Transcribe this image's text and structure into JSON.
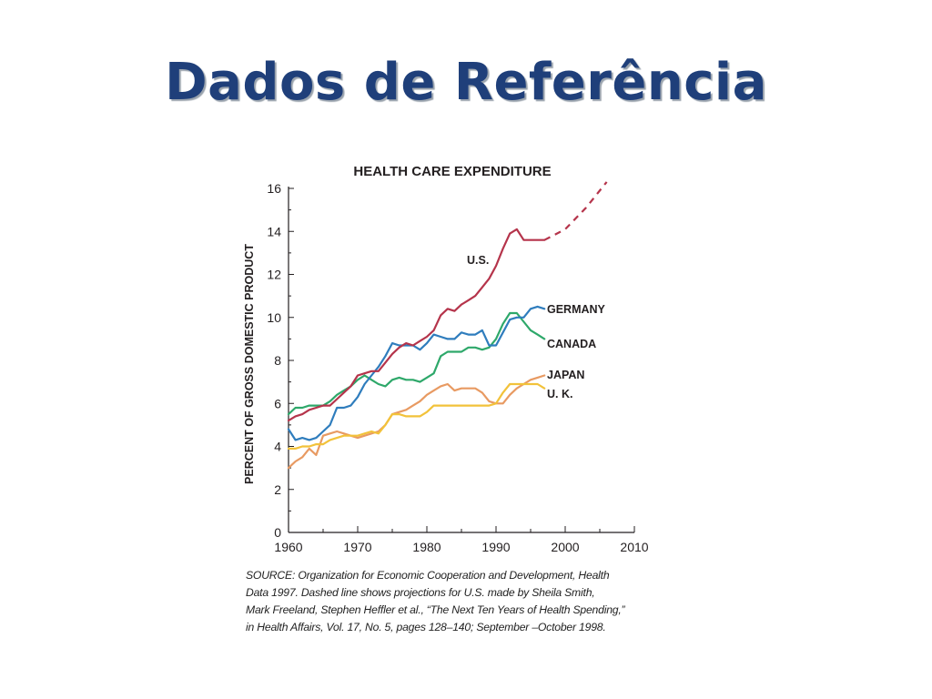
{
  "slide": {
    "title": "Dados de Referência"
  },
  "chart_data": {
    "type": "line",
    "title": "HEALTH CARE EXPENDITURE",
    "ylabel": "PERCENT OF GROSS DOMESTIC PRODUCT",
    "xlabel": "",
    "xlim": [
      1960,
      2010
    ],
    "ylim": [
      0,
      16
    ],
    "xticks": [
      "1960",
      "1970",
      "1980",
      "1990",
      "2000",
      "2010"
    ],
    "yticks": [
      "0",
      "2",
      "4",
      "6",
      "8",
      "10",
      "12",
      "14",
      "16"
    ],
    "series": [
      {
        "name": "U.S.",
        "color": "#b5344b",
        "x": [
          1960,
          1961,
          1962,
          1963,
          1964,
          1965,
          1966,
          1967,
          1968,
          1969,
          1970,
          1971,
          1972,
          1973,
          1974,
          1975,
          1976,
          1977,
          1978,
          1979,
          1980,
          1981,
          1982,
          1983,
          1984,
          1985,
          1986,
          1987,
          1988,
          1989,
          1990,
          1991,
          1992,
          1993,
          1994,
          1995,
          1996,
          1997
        ],
        "values": [
          5.2,
          5.4,
          5.5,
          5.7,
          5.8,
          5.9,
          5.9,
          6.2,
          6.5,
          6.8,
          7.3,
          7.4,
          7.5,
          7.5,
          7.9,
          8.3,
          8.6,
          8.8,
          8.7,
          8.9,
          9.1,
          9.4,
          10.1,
          10.4,
          10.3,
          10.6,
          10.8,
          11.0,
          11.4,
          11.8,
          12.4,
          13.2,
          13.9,
          14.1,
          13.6,
          13.6,
          13.6,
          13.6
        ]
      },
      {
        "name": "U.S. projection",
        "color": "#b5344b",
        "dashed": true,
        "x": [
          1997,
          2000,
          2003,
          2006
        ],
        "values": [
          13.6,
          14.1,
          15.1,
          16.3
        ]
      },
      {
        "name": "GERMANY",
        "color": "#2f7dbd",
        "x": [
          1960,
          1961,
          1962,
          1963,
          1964,
          1965,
          1966,
          1967,
          1968,
          1969,
          1970,
          1971,
          1972,
          1973,
          1974,
          1975,
          1976,
          1977,
          1978,
          1979,
          1980,
          1981,
          1982,
          1983,
          1984,
          1985,
          1986,
          1987,
          1988,
          1989,
          1990,
          1991,
          1992,
          1993,
          1994,
          1995,
          1996,
          1997
        ],
        "values": [
          4.8,
          4.3,
          4.4,
          4.3,
          4.4,
          4.7,
          5.0,
          5.8,
          5.8,
          5.9,
          6.3,
          6.9,
          7.3,
          7.7,
          8.2,
          8.8,
          8.7,
          8.7,
          8.7,
          8.5,
          8.8,
          9.2,
          9.1,
          9.0,
          9.0,
          9.3,
          9.2,
          9.2,
          9.4,
          8.7,
          8.7,
          9.3,
          9.9,
          10.0,
          10.0,
          10.4,
          10.5,
          10.4
        ]
      },
      {
        "name": "CANADA",
        "color": "#2ea86a",
        "x": [
          1960,
          1961,
          1962,
          1963,
          1964,
          1965,
          1966,
          1967,
          1968,
          1969,
          1970,
          1971,
          1972,
          1973,
          1974,
          1975,
          1976,
          1977,
          1978,
          1979,
          1980,
          1981,
          1982,
          1983,
          1984,
          1985,
          1986,
          1987,
          1988,
          1989,
          1990,
          1991,
          1992,
          1993,
          1994,
          1995,
          1996,
          1997
        ],
        "values": [
          5.5,
          5.8,
          5.8,
          5.9,
          5.9,
          5.9,
          6.1,
          6.4,
          6.6,
          6.8,
          7.1,
          7.3,
          7.1,
          6.9,
          6.8,
          7.1,
          7.2,
          7.1,
          7.1,
          7.0,
          7.2,
          7.4,
          8.2,
          8.4,
          8.4,
          8.4,
          8.6,
          8.6,
          8.5,
          8.6,
          9.0,
          9.7,
          10.2,
          10.2,
          9.8,
          9.4,
          9.2,
          9.0
        ]
      },
      {
        "name": "JAPAN",
        "color": "#e89a62",
        "x": [
          1960,
          1961,
          1962,
          1963,
          1964,
          1965,
          1966,
          1967,
          1968,
          1969,
          1970,
          1971,
          1972,
          1973,
          1974,
          1975,
          1976,
          1977,
          1978,
          1979,
          1980,
          1981,
          1982,
          1983,
          1984,
          1985,
          1986,
          1987,
          1988,
          1989,
          1990,
          1991,
          1992,
          1993,
          1994,
          1995,
          1996,
          1997
        ],
        "values": [
          3.0,
          3.3,
          3.5,
          3.9,
          3.6,
          4.5,
          4.6,
          4.7,
          4.6,
          4.5,
          4.4,
          4.5,
          4.6,
          4.7,
          5.0,
          5.5,
          5.6,
          5.7,
          5.9,
          6.1,
          6.4,
          6.6,
          6.8,
          6.9,
          6.6,
          6.7,
          6.7,
          6.7,
          6.5,
          6.1,
          6.0,
          6.0,
          6.4,
          6.7,
          6.9,
          7.1,
          7.2,
          7.3
        ]
      },
      {
        "name": "U. K.",
        "color": "#f2c23a",
        "x": [
          1960,
          1961,
          1962,
          1963,
          1964,
          1965,
          1966,
          1967,
          1968,
          1969,
          1970,
          1971,
          1972,
          1973,
          1974,
          1975,
          1976,
          1977,
          1978,
          1979,
          1980,
          1981,
          1982,
          1983,
          1984,
          1985,
          1986,
          1987,
          1988,
          1989,
          1990,
          1991,
          1992,
          1993,
          1994,
          1995,
          1996,
          1997
        ],
        "values": [
          3.9,
          3.9,
          4.0,
          4.0,
          4.1,
          4.1,
          4.3,
          4.4,
          4.5,
          4.5,
          4.5,
          4.6,
          4.7,
          4.6,
          5.0,
          5.5,
          5.5,
          5.4,
          5.4,
          5.4,
          5.6,
          5.9,
          5.9,
          5.9,
          5.9,
          5.9,
          5.9,
          5.9,
          5.9,
          5.9,
          6.0,
          6.5,
          6.9,
          6.9,
          6.9,
          6.9,
          6.9,
          6.7
        ]
      }
    ],
    "annotations": {
      "us_label": "U.S.",
      "germany_label": "GERMANY",
      "canada_label": "CANADA",
      "japan_label": "JAPAN",
      "uk_label": "U. K."
    },
    "grid": false,
    "legend": "inline labels"
  },
  "source": {
    "line1": "SOURCE: Organization for Economic Cooperation and Development, Health",
    "line2": "Data 1997. Dashed line shows projections for U.S. made by Sheila Smith,",
    "line3": "Mark Freeland, Stephen Heffler et al., “The Next Ten Years of Health Spending,”",
    "line4": "in Health Affairs, Vol. 17, No. 5, pages 128–140; September –October 1998."
  }
}
